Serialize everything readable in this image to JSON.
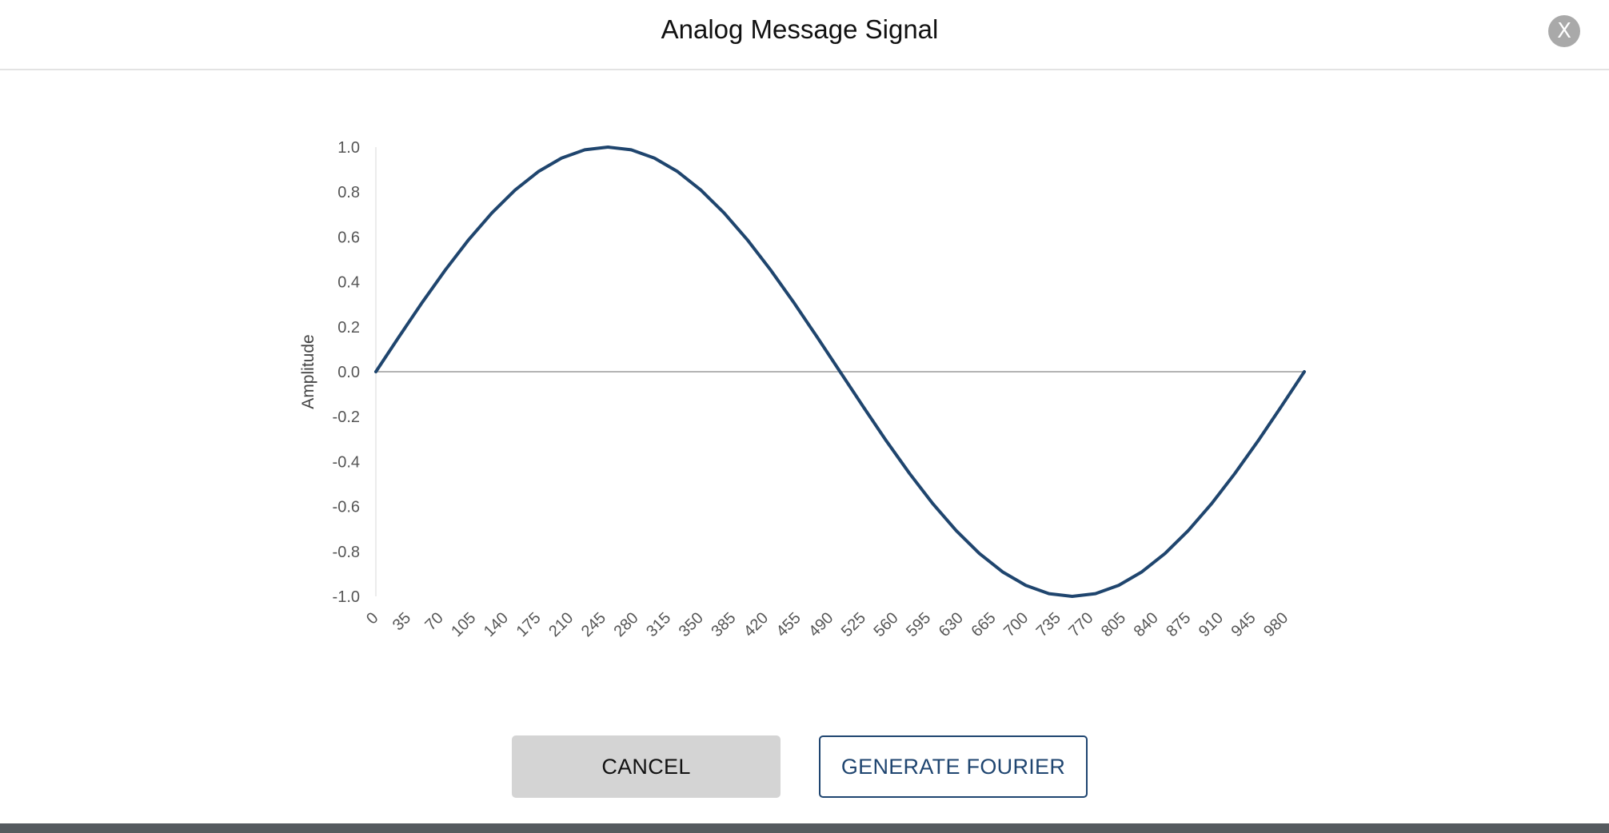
{
  "dialog": {
    "title": "Analog Message Signal",
    "close_label": "X",
    "cancel_label": "CANCEL",
    "generate_label": "GENERATE FOURIER"
  },
  "colors": {
    "line": "#1f456e",
    "primary": "#1f4570",
    "cancel_bg": "#d4d4d4"
  },
  "chart_data": {
    "type": "line",
    "title": "",
    "xlabel": "",
    "ylabel": "Amplitude",
    "ylim": [
      -1.0,
      1.0
    ],
    "xlim": [
      0,
      1000
    ],
    "y_ticks": [
      "1.0",
      "0.8",
      "0.6",
      "0.4",
      "0.2",
      "0.0",
      "-0.2",
      "-0.4",
      "-0.6",
      "-0.8",
      "-1.0"
    ],
    "x_ticks": [
      "0",
      "35",
      "70",
      "105",
      "140",
      "175",
      "210",
      "245",
      "280",
      "315",
      "350",
      "385",
      "420",
      "455",
      "490",
      "525",
      "560",
      "595",
      "630",
      "665",
      "700",
      "735",
      "770",
      "805",
      "840",
      "875",
      "910",
      "945",
      "980"
    ],
    "grid": false,
    "series": [
      {
        "x": [
          0,
          25,
          50,
          75,
          100,
          125,
          150,
          175,
          200,
          225,
          250,
          275,
          300,
          325,
          350,
          375,
          400,
          425,
          450,
          475,
          500,
          525,
          550,
          575,
          600,
          625,
          650,
          675,
          700,
          725,
          750,
          775,
          800,
          825,
          850,
          875,
          900,
          925,
          950,
          975,
          1000
        ],
        "y": [
          0.0,
          0.156,
          0.309,
          0.454,
          0.588,
          0.707,
          0.809,
          0.891,
          0.951,
          0.988,
          1.0,
          0.988,
          0.951,
          0.891,
          0.809,
          0.707,
          0.588,
          0.454,
          0.309,
          0.156,
          0.0,
          -0.156,
          -0.309,
          -0.454,
          -0.588,
          -0.707,
          -0.809,
          -0.891,
          -0.951,
          -0.988,
          -1.0,
          -0.988,
          -0.951,
          -0.891,
          -0.809,
          -0.707,
          -0.588,
          -0.454,
          -0.309,
          -0.156,
          0.0
        ]
      }
    ]
  }
}
